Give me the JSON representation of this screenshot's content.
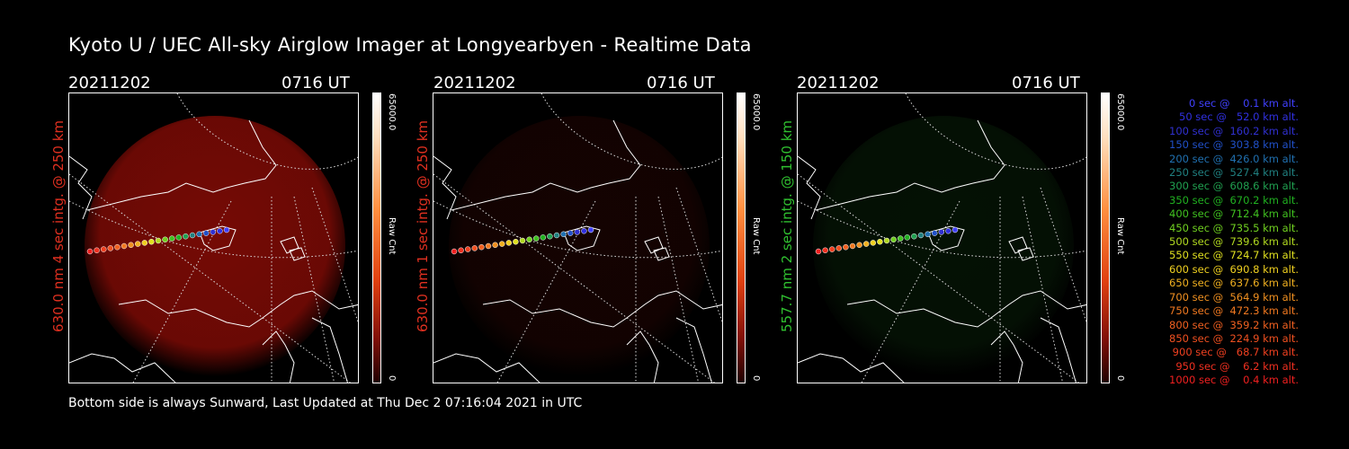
{
  "title": "Kyoto U / UEC All-sky Airglow Imager at Longyearbyen - Realtime Data",
  "footer": "Bottom side is always Sunward, Last Updated at Thu Dec  2 07:16:04 2021 in UTC",
  "panels": [
    {
      "date": "20211202",
      "time": "0716 UT",
      "vlabel": "630.0 nm  4 sec intg. @ 250 km",
      "label_color": "#e03020",
      "cbar_max": "65000.0",
      "cbar_min": "0",
      "cbar_unit": "Raw Cnt",
      "glow_color": "#8a0c06",
      "glow_level": 0.85
    },
    {
      "date": "20211202",
      "time": "0716 UT",
      "vlabel": "630.0 nm  1 sec intg. @ 250 km",
      "label_color": "#e03020",
      "cbar_max": "65000.0",
      "cbar_min": "0",
      "cbar_unit": "Raw Cnt",
      "glow_color": "#3a0804",
      "glow_level": 0.35
    },
    {
      "date": "20211202",
      "time": "0716 UT",
      "vlabel": "557.7 nm  2 sec intg. @ 150 km",
      "label_color": "#30c030",
      "cbar_max": "65000.0",
      "cbar_min": "0",
      "cbar_unit": "Raw Cnt",
      "glow_color": "#0f3a0f",
      "glow_level": 0.3
    }
  ],
  "legend": [
    {
      "text": "   0 sec @    0.1 km alt.",
      "color": "#4040ff"
    },
    {
      "text": "  50 sec @   52.0 km alt.",
      "color": "#3030e0"
    },
    {
      "text": " 100 sec @  160.2 km alt.",
      "color": "#3030d0"
    },
    {
      "text": " 150 sec @  303.8 km alt.",
      "color": "#2050c8"
    },
    {
      "text": " 200 sec @  426.0 km alt.",
      "color": "#2070b0"
    },
    {
      "text": " 250 sec @  527.4 km alt.",
      "color": "#208080"
    },
    {
      "text": " 300 sec @  608.6 km alt.",
      "color": "#20a050"
    },
    {
      "text": " 350 sec @  670.2 km alt.",
      "color": "#20b020"
    },
    {
      "text": " 400 sec @  712.4 km alt.",
      "color": "#40c020"
    },
    {
      "text": " 450 sec @  735.5 km alt.",
      "color": "#70d020"
    },
    {
      "text": " 500 sec @  739.6 km alt.",
      "color": "#b0d820"
    },
    {
      "text": " 550 sec @  724.7 km alt.",
      "color": "#e0e020"
    },
    {
      "text": " 600 sec @  690.8 km alt.",
      "color": "#f0d020"
    },
    {
      "text": " 650 sec @  637.6 km alt.",
      "color": "#f0b020"
    },
    {
      "text": " 700 sec @  564.9 km alt.",
      "color": "#f09020"
    },
    {
      "text": " 750 sec @  472.3 km alt.",
      "color": "#f07820"
    },
    {
      "text": " 800 sec @  359.2 km alt.",
      "color": "#f06020"
    },
    {
      "text": " 850 sec @  224.9 km alt.",
      "color": "#f05020"
    },
    {
      "text": " 900 sec @   68.7 km alt.",
      "color": "#f04020"
    },
    {
      "text": " 950 sec @    6.2 km alt.",
      "color": "#f03020"
    },
    {
      "text": "1000 sec @    0.4 km alt.",
      "color": "#f02020"
    }
  ]
}
